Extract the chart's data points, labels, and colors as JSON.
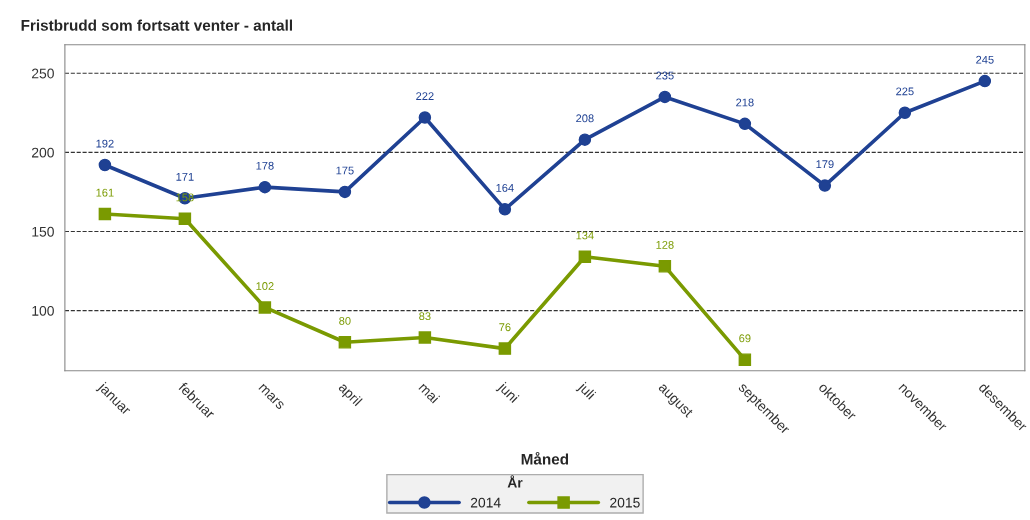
{
  "chart_data": {
    "type": "line",
    "title": "Fristbrudd som fortsatt venter - antall",
    "xlabel": "Måned",
    "legend_title": "År",
    "categories": [
      "januar",
      "februar",
      "mars",
      "april",
      "mai",
      "juni",
      "juli",
      "august",
      "september",
      "oktober",
      "november",
      "desember"
    ],
    "series": [
      {
        "name": "2014",
        "color": "#1f4193",
        "marker": "circle",
        "values": [
          192,
          171,
          178,
          175,
          222,
          164,
          208,
          235,
          218,
          179,
          225,
          245
        ]
      },
      {
        "name": "2015",
        "color": "#7a9a01",
        "marker": "square",
        "values": [
          161,
          158,
          102,
          80,
          83,
          76,
          134,
          128,
          69,
          null,
          null,
          null
        ]
      }
    ],
    "ylim": [
      62,
      268
    ],
    "yticks": [
      100,
      150,
      200,
      250
    ],
    "grid": "y",
    "data_labels": true,
    "legend": "bottom",
    "line_style": "solid"
  }
}
